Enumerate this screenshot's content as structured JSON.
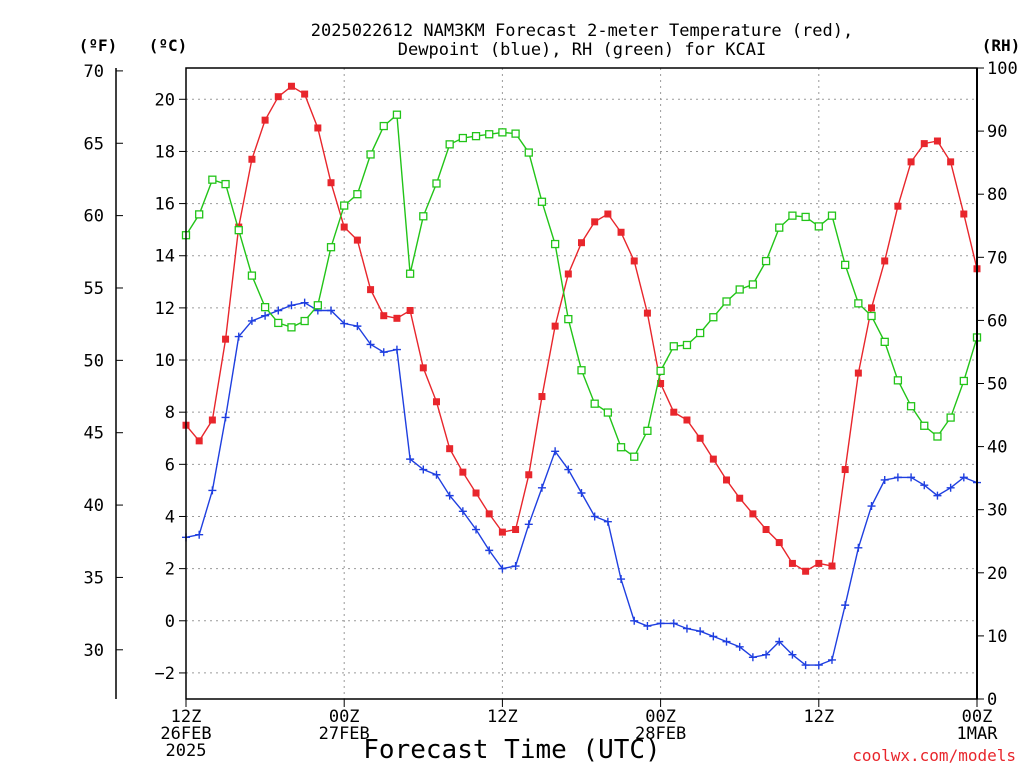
{
  "chart_data": {
    "type": "line",
    "title_lines": [
      "2025022612 NAM3KM Forecast 2-meter Temperature (red),",
      "Dewpoint (blue), RH (green) for KCAI"
    ],
    "xlabel": "Forecast Time (UTC)",
    "units": {
      "fahrenheit": "(ºF)",
      "celsius": "(ºC)",
      "rh": "(RH)"
    },
    "credit": "coolwx.com/models",
    "x_ticks": [
      {
        "hour": 0,
        "lines": [
          "12Z",
          "26FEB",
          "2025"
        ]
      },
      {
        "hour": 12,
        "lines": [
          "00Z",
          "27FEB"
        ]
      },
      {
        "hour": 24,
        "lines": [
          "12Z"
        ]
      },
      {
        "hour": 36,
        "lines": [
          "00Z",
          "28FEB"
        ]
      },
      {
        "hour": 48,
        "lines": [
          "12Z"
        ]
      },
      {
        "hour": 60,
        "lines": [
          "00Z",
          "1MAR"
        ]
      }
    ],
    "xlim": [
      0,
      60
    ],
    "ylim_celsius": [
      -3.0,
      21.2
    ],
    "ylim_fahrenheit": [
      26.6,
      70.2
    ],
    "ylim_rh": [
      0,
      100
    ],
    "celsius_ticks": [
      -2,
      0,
      2,
      4,
      6,
      8,
      10,
      12,
      14,
      16,
      18,
      20
    ],
    "fahrenheit_ticks": [
      30,
      35,
      40,
      45,
      50,
      55,
      60,
      65,
      70
    ],
    "rh_ticks": [
      0,
      10,
      20,
      30,
      40,
      50,
      60,
      70,
      80,
      90,
      100
    ],
    "grid": true,
    "series": [
      {
        "name": "Temperature",
        "axis": "celsius",
        "color": "#e8262c",
        "marker": "filled-square",
        "x": [
          0,
          1,
          2,
          3,
          4,
          5,
          6,
          7,
          8,
          9,
          10,
          11,
          12,
          13,
          14,
          15,
          16,
          17,
          18,
          19,
          20,
          21,
          22,
          23,
          24,
          25,
          26,
          27,
          28,
          29,
          30,
          31,
          32,
          33,
          34,
          35,
          36,
          37,
          38,
          39,
          40,
          41,
          42,
          43,
          44,
          45,
          46,
          47,
          48,
          49,
          50,
          51,
          52,
          53,
          54,
          55,
          56,
          57,
          58,
          59,
          60
        ],
        "values": [
          7.5,
          6.9,
          7.7,
          10.8,
          15.1,
          17.7,
          19.2,
          20.1,
          20.5,
          20.2,
          18.9,
          16.8,
          15.1,
          14.6,
          12.7,
          11.7,
          11.6,
          11.9,
          9.7,
          8.4,
          6.6,
          5.7,
          4.9,
          4.1,
          3.4,
          3.5,
          5.6,
          8.6,
          11.3,
          13.3,
          14.5,
          15.3,
          15.6,
          14.9,
          13.8,
          11.8,
          9.1,
          8.0,
          7.7,
          7.0,
          6.2,
          5.4,
          4.7,
          4.1,
          3.5,
          3.0,
          2.2,
          1.9,
          2.2,
          2.1,
          5.8,
          9.5,
          12.0,
          13.8,
          15.9,
          17.6,
          18.3,
          18.4,
          17.6,
          15.6,
          13.5
        ]
      },
      {
        "name": "Dewpoint",
        "axis": "celsius",
        "color": "#1f3fe0",
        "marker": "plus",
        "x": [
          0,
          1,
          2,
          3,
          4,
          5,
          6,
          7,
          8,
          9,
          10,
          11,
          12,
          13,
          14,
          15,
          16,
          17,
          18,
          19,
          20,
          21,
          22,
          23,
          24,
          25,
          26,
          27,
          28,
          29,
          30,
          31,
          32,
          33,
          34,
          35,
          36,
          37,
          38,
          39,
          40,
          41,
          42,
          43,
          44,
          45,
          46,
          47,
          48,
          49,
          50,
          51,
          52,
          53,
          54,
          55,
          56,
          57,
          58,
          59,
          60
        ],
        "values": [
          3.2,
          3.3,
          5.0,
          7.8,
          10.9,
          11.5,
          11.7,
          11.9,
          12.1,
          12.2,
          11.9,
          11.9,
          11.4,
          11.3,
          10.6,
          10.3,
          10.4,
          6.2,
          5.8,
          5.6,
          4.8,
          4.2,
          3.5,
          2.7,
          2.0,
          2.1,
          3.7,
          5.1,
          6.5,
          5.8,
          4.9,
          4.0,
          3.8,
          1.6,
          0.0,
          -0.2,
          -0.1,
          -0.1,
          -0.3,
          -0.4,
          -0.6,
          -0.8,
          -1.0,
          -1.4,
          -1.3,
          -0.8,
          -1.3,
          -1.7,
          -1.7,
          -1.5,
          0.6,
          2.8,
          4.4,
          5.4,
          5.5,
          5.5,
          5.2,
          4.8,
          5.1,
          5.5,
          5.3
        ]
      },
      {
        "name": "RH",
        "axis": "rh",
        "color": "#22c418",
        "marker": "open-square",
        "x": [
          0,
          1,
          2,
          3,
          4,
          5,
          6,
          7,
          8,
          9,
          10,
          11,
          12,
          13,
          14,
          15,
          16,
          17,
          18,
          19,
          20,
          21,
          22,
          23,
          24,
          25,
          26,
          27,
          28,
          29,
          30,
          31,
          32,
          33,
          34,
          35,
          36,
          37,
          38,
          39,
          40,
          41,
          42,
          43,
          44,
          45,
          46,
          47,
          48,
          49,
          50,
          51,
          52,
          53,
          54,
          55,
          56,
          57,
          58,
          59,
          60
        ],
        "values": [
          73.5,
          76.8,
          82.3,
          81.6,
          74.3,
          67.1,
          62.1,
          59.6,
          58.9,
          59.9,
          62.4,
          71.6,
          78.2,
          80.0,
          86.3,
          90.8,
          92.6,
          67.4,
          76.5,
          81.7,
          87.9,
          88.9,
          89.2,
          89.5,
          89.8,
          89.6,
          86.6,
          78.8,
          72.1,
          60.2,
          52.1,
          46.8,
          45.4,
          39.9,
          38.4,
          42.5,
          52.0,
          55.9,
          56.1,
          58.0,
          60.5,
          63.0,
          64.9,
          65.7,
          69.4,
          74.7,
          76.6,
          76.4,
          74.9,
          76.6,
          68.8,
          62.7,
          60.7,
          56.6,
          50.5,
          46.4,
          43.3,
          41.6,
          44.6,
          50.4,
          57.3
        ]
      }
    ]
  }
}
